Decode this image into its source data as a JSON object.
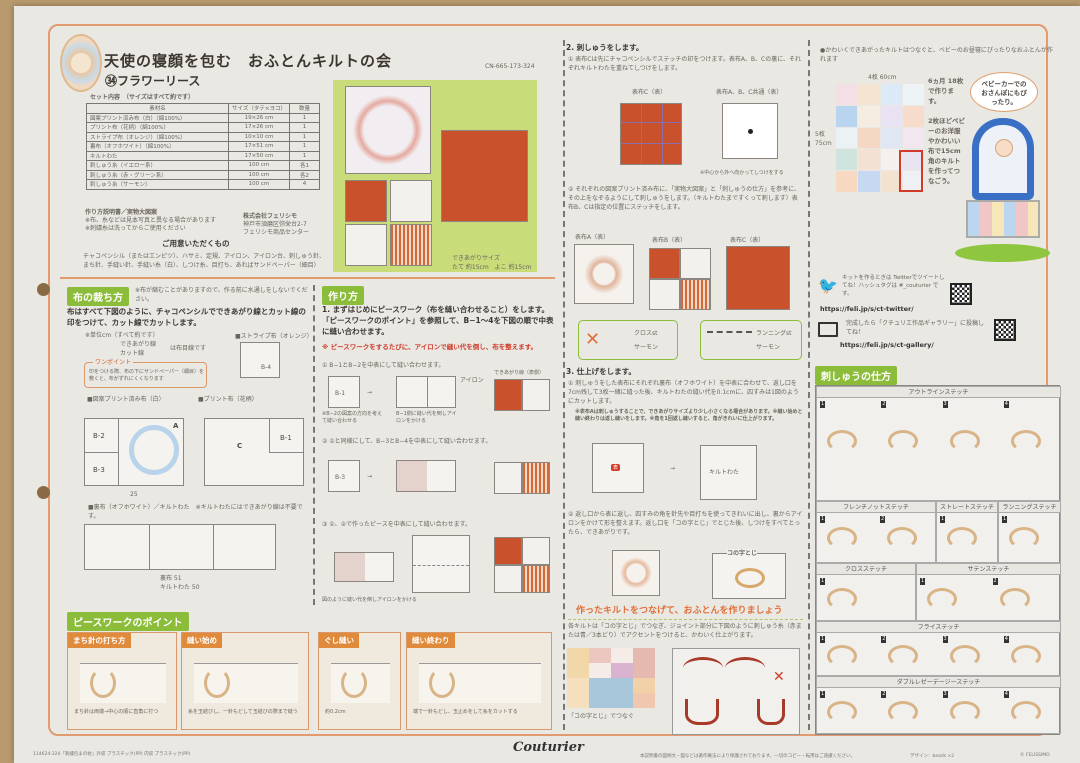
{
  "header": {
    "title": "天使の寝顔を包む　おふとんキルトの会",
    "code": "CN-665-173-324",
    "subtitle": "㉞フラワーリース",
    "set_label": "セット内容　（サイズはすべて約です）"
  },
  "materials": {
    "headers": [
      "素材名",
      "サイズ（タテ×ヨコ）",
      "数量"
    ],
    "rows": [
      [
        "図案プリント済み布（白）（綿100%）",
        "19×26 cm",
        "1"
      ],
      [
        "プリント布（花柄）（綿100%）",
        "17×26 cm",
        "1"
      ],
      [
        "ストライプ布（オレンジ）（綿100%）",
        "10×10 cm",
        "1"
      ],
      [
        "裏布（オフホワイト）（綿100%）",
        "17×51 cm",
        "1"
      ],
      [
        "キルトわた",
        "17×50 cm",
        "1"
      ],
      [
        "刺しゅう糸（イエロー系）",
        "100 cm",
        "各1"
      ],
      [
        "刺しゅう糸（赤・グリーン系）",
        "100 cm",
        "各2"
      ],
      [
        "刺しゅう糸（サーモン）",
        "100 cm",
        "4"
      ]
    ]
  },
  "notes": {
    "heading": "作り方説明書／実物大図案",
    "line1": "※布、糸などは見本写真と異なる場合があります",
    "line2": "※刺繍糸は洗ってからご使用ください"
  },
  "company": {
    "name": "株式会社フェリシモ",
    "address": "神戸市須磨区弥栄台2-7",
    "center": "フェリシモ商品センター"
  },
  "prepare": {
    "heading": "ご用意いただくもの",
    "text": "チャコペンシル（またはエンピツ）、ハサミ、定規、アイロン、アイロン台、刺しゅう針、まち針、手縫い針、手縫い糸（白）、しつけ糸、目打ち、あればサンドペーパー（細目）"
  },
  "photo": {
    "caption1": "できあがりサイズ",
    "caption2": "たて 約15cm　よこ 約15cm"
  },
  "cutting": {
    "tag": "布の裁ち方",
    "note": "※布が縮むことがありますので、作る前に水通しをしないでください。",
    "intro": "布はすべて下図のように、チャコペンシルでできあがり線とカット線の印をつけて、カット線でカットします。",
    "unit": "※単位cm（すべて約です）",
    "legend1": "できあがり線",
    "legend2": "カット線",
    "arrow": "は布目線です",
    "stripe": "■ストライプ布（オレンジ）",
    "onepoint": "ワンポイント",
    "onepoint_text": "印をつける際、布の下にサンドペーパー（細目）を敷くと、布がずれにくくなります",
    "print1": "■図案プリント済み布（白）",
    "print2": "■プリント布（花柄）",
    "back": "■裏布（オフホワイト）／キルトわた　※キルトわたにはできあがり線は不要です。",
    "labels": {
      "A": "A",
      "B1": "B-1",
      "B2": "B-2",
      "B3": "B-3",
      "B4": "B-4",
      "C": "C",
      "omote": "表",
      "w25": "25",
      "w51": "裏布 51",
      "w50": "キルトわた 50"
    }
  },
  "howto": {
    "tag": "作り方",
    "step1": "1. まずはじめにピースワーク（布を縫い合わせること）をします。「ピースワークのポイント」を参照して、B−1〜4を下図の順で中表に縫い合わせます。",
    "warning": "※ ピースワークをするたびに、アイロンで縫い代を倒し、布を整えます。",
    "s1": "① B−1とB−2を中表にして縫い合わせます。",
    "s2": "② ①と同様にして、B−3とB−4を中表にして縫い合わせます。",
    "s3": "③ ①、②で作ったピースを中表にして縫い合わせます。",
    "iron": "アイロン",
    "done": "できあがり線（表側）",
    "cap1": "※B−2の図案の方向を考えて縫い合わせる",
    "cap2": "B−1側に縫い代を倒しアイロンをかける",
    "cap3": "図のように縫い代を倒しアイロンをかける"
  },
  "piecework": {
    "tag": "ピースワークのポイント",
    "items": [
      {
        "title": "まち針の打ち方",
        "text": "まち針は両端→中心の順に直角に打つ"
      },
      {
        "title": "縫い始め",
        "text": "糸を玉結びし、一針もどして玉結びの際まで縫う"
      },
      {
        "title": "ぐし縫い",
        "text": "約0.2cm"
      },
      {
        "title": "縫い終わり",
        "text": "端で一針もどし、玉止めをして糸をカットする"
      }
    ]
  },
  "embroidery": {
    "heading": "2. 刺しゅうをします。",
    "p1": "① 表布Cは先にチャコペンシルでステッチの印をつけます。表布A、B、Cの裏に、それぞれキルトわたを重ねてしつけをします。",
    "p2": "② それぞれの図案プリント済み布に、「実物大図案」と「刺しゅうの仕方」を参考に、その上をなぞるようにして刺しゅうをします。（キルトわたまですくって刺します）表布B、Cは指定の位置にステッチをします。",
    "labelC": "表布C（表）",
    "labelABC": "表布A、B、C共通（表）",
    "labelA": "表布A（表）",
    "labelB": "表布B（表）",
    "cross": "クロスst",
    "running": "ランニングst",
    "salmon": "サーモン",
    "note": "※中心から外へ向かってしつけをする"
  },
  "finish": {
    "heading": "3. 仕上げをします。",
    "p1": "① 刺しゅうをした表布にそれぞれ裏布（オフホワイト）を中表に合わせて、返し口を7cm残して3枚一緒に縫った後、キルトわたの縫い代を0.1cmに、四すみは1図のようにカットします。",
    "notes": "※表布Aは刺しゅうすることで、できあがりサイズより少し小さくなる場合があります。※縫い始めと縫い終わりは返し縫いをします。※角を1回返し縫いすると、角がきれいに仕上がります。",
    "p2": "② 返し口から表に返し、四すみの角を針先や目打ちを使ってきれいに出し、裏からアイロンをかけて形を整えます。返し口を「コの字とじ」でとじた後、しつけをすべてとったら、できあがりです。",
    "quilt": "キルトわた",
    "ura": "裏布",
    "kono": "コの字とじ"
  },
  "connect": {
    "heading": "作ったキルトをつなげて、おふとんを作りましょう",
    "text": "各キルトは「コの字とじ」でつなぎ、ジョイント部分に下図のように刺しゅう糸（赤または青／3本どり）でアクセントをつけると、かわいく仕上がります。",
    "join": "「コの字とじ」でつなぐ"
  },
  "promo": {
    "text": "●かわいくできあがったキルトはつなぐと、ベビーのお昼寝にぴったりなおふとんが作れます",
    "size_w": "4枚 60cm",
    "size_h": "5枚 75cm",
    "months": "6ヵ月 18枚で作ります。",
    "more": "2枚ほどベビーのお洋服やかわいい布で15cm角のキルトを作ってつなごう。",
    "bubble": "ベビーカーでのおさんぽにもぴったり。"
  },
  "social": {
    "twitter_text": "キットを作るときは Twitterでツイートしてね！ハッシュタグは #_couturier です。",
    "twitter_url": "https://feli.jp/s/ct-twitter/",
    "gallery_text": "完成したら「クチュリエ作品ギャラリー」に投稿してね！",
    "gallery_url": "https://feli.jp/s/ct-gallery/"
  },
  "stitches": {
    "tag": "刺しゅうの仕方",
    "names": [
      "アウトラインステッチ",
      "フレンチノットステッチ",
      "ストレートステッチ",
      "ランニングステッチ",
      "クロスステッチ",
      "サテンステッチ",
      "フライステッチ",
      "ダブルレゼーデージーステッチ"
    ]
  },
  "footer": {
    "left": "114624-324「刺繍包まの枕」外袋 プラスチック(PP) 内袋 プラスチック(PP)",
    "brand": "Couturier",
    "notice": "本説明書の図柄文・図などは著作権法により保護されております。一切のコピー・転用はご遠慮ください。",
    "design": "デザイン：beads ×2",
    "copyright": "© FELISSIMO"
  },
  "colors": {
    "accent": "#e29a6f",
    "green": "#8cbd3a",
    "orange": "#e08a3c",
    "fabric_red": "#c9522c"
  }
}
